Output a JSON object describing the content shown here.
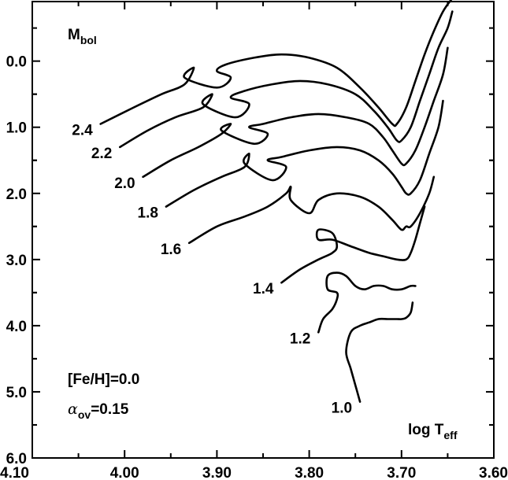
{
  "chart_data": {
    "type": "line",
    "title": "",
    "xlabel": {
      "main": "log T",
      "sub": "eff"
    },
    "ylabel": {
      "main": "M",
      "sub": "bol"
    },
    "xlim": [
      4.1,
      3.6
    ],
    "ylim": [
      6.0,
      -0.9
    ],
    "x_inverted": true,
    "y_inverted": true,
    "x_ticks": [
      "4.10",
      "4.00",
      "3.90",
      "3.80",
      "3.70",
      "3.60"
    ],
    "y_ticks": [
      "0.0",
      "1.0",
      "2.0",
      "3.0",
      "4.0",
      "5.0",
      "6.0"
    ],
    "grid": false,
    "annotations": {
      "metallicity": "[Fe/H]=0.0",
      "overshoot": {
        "symbol": "α",
        "sub": "ov",
        "value": "=0.15"
      }
    },
    "series": [
      {
        "label": "2.4",
        "x": [
          4.026,
          3.99,
          3.96,
          3.935,
          3.925,
          3.935,
          3.9,
          3.885,
          3.9,
          3.89,
          3.86,
          3.83,
          3.8,
          3.77,
          3.745,
          3.725,
          3.71,
          3.705,
          3.695,
          3.685,
          3.675,
          3.665,
          3.655,
          3.645,
          3.635
        ],
        "y": [
          0.95,
          0.7,
          0.5,
          0.35,
          0.1,
          0.25,
          0.4,
          0.25,
          0.15,
          0.05,
          -0.05,
          -0.1,
          -0.05,
          0.1,
          0.4,
          0.7,
          0.95,
          0.95,
          0.7,
          0.3,
          -0.1,
          -0.45,
          -0.75,
          -0.95,
          -1.1
        ]
      },
      {
        "label": "2.2",
        "x": [
          4.005,
          3.975,
          3.945,
          3.915,
          3.905,
          3.915,
          3.88,
          3.865,
          3.885,
          3.87,
          3.84,
          3.81,
          3.78,
          3.75,
          3.73,
          3.715,
          3.705,
          3.7,
          3.69,
          3.68,
          3.67,
          3.66,
          3.65,
          3.645
        ],
        "y": [
          1.3,
          1.05,
          0.85,
          0.7,
          0.5,
          0.65,
          0.85,
          0.65,
          0.55,
          0.45,
          0.35,
          0.3,
          0.35,
          0.5,
          0.75,
          1.0,
          1.2,
          1.2,
          1.0,
          0.6,
          0.2,
          -0.2,
          -0.5,
          -0.75
        ]
      },
      {
        "label": "2.0",
        "x": [
          3.98,
          3.95,
          3.92,
          3.895,
          3.885,
          3.895,
          3.86,
          3.845,
          3.865,
          3.85,
          3.82,
          3.79,
          3.76,
          3.735,
          3.72,
          3.71,
          3.7,
          3.695,
          3.685,
          3.675,
          3.665,
          3.655,
          3.65
        ],
        "y": [
          1.75,
          1.5,
          1.3,
          1.1,
          0.95,
          1.05,
          1.25,
          1.1,
          1.0,
          0.95,
          0.85,
          0.8,
          0.85,
          0.95,
          1.15,
          1.35,
          1.55,
          1.55,
          1.35,
          1.0,
          0.6,
          0.2,
          -0.2
        ]
      },
      {
        "label": "1.8",
        "x": [
          3.955,
          3.925,
          3.895,
          3.87,
          3.865,
          3.87,
          3.84,
          3.825,
          3.845,
          3.83,
          3.8,
          3.77,
          3.745,
          3.725,
          3.71,
          3.7,
          3.695,
          3.69,
          3.68,
          3.67,
          3.66,
          3.655
        ],
        "y": [
          2.2,
          1.95,
          1.75,
          1.6,
          1.4,
          1.55,
          1.8,
          1.6,
          1.5,
          1.45,
          1.35,
          1.3,
          1.35,
          1.5,
          1.7,
          1.9,
          2.0,
          2.0,
          1.8,
          1.4,
          1.0,
          0.6
        ]
      },
      {
        "label": "1.6",
        "x": [
          3.93,
          3.9,
          3.87,
          3.845,
          3.825,
          3.82,
          3.82,
          3.8,
          3.79,
          3.77,
          3.745,
          3.725,
          3.71,
          3.7,
          3.695,
          3.69,
          3.68,
          3.67,
          3.665
        ],
        "y": [
          2.75,
          2.5,
          2.35,
          2.2,
          2.0,
          1.9,
          2.1,
          2.3,
          2.1,
          2.0,
          2.05,
          2.2,
          2.4,
          2.55,
          2.5,
          2.5,
          2.3,
          2.0,
          1.75
        ]
      },
      {
        "label": "1.4",
        "x": [
          3.83,
          3.81,
          3.79,
          3.775,
          3.77,
          3.775,
          3.79,
          3.79,
          3.775,
          3.755,
          3.735,
          3.72,
          3.705,
          3.695,
          3.69,
          3.685,
          3.68,
          3.675
        ],
        "y": [
          3.35,
          3.15,
          3.0,
          2.9,
          2.8,
          2.6,
          2.55,
          2.7,
          2.7,
          2.8,
          2.9,
          2.95,
          3.0,
          3.0,
          2.9,
          2.7,
          2.45,
          2.2
        ]
      },
      {
        "label": "1.2",
        "x": [
          3.79,
          3.785,
          3.775,
          3.77,
          3.77,
          3.78,
          3.78,
          3.77,
          3.76,
          3.75,
          3.74,
          3.73,
          3.72,
          3.71,
          3.7,
          3.69,
          3.685
        ],
        "y": [
          4.1,
          3.9,
          3.75,
          3.6,
          3.5,
          3.45,
          3.25,
          3.2,
          3.25,
          3.4,
          3.45,
          3.4,
          3.4,
          3.45,
          3.45,
          3.4,
          3.4
        ]
      },
      {
        "label": "1.0",
        "x": [
          3.745,
          3.75,
          3.755,
          3.76,
          3.755,
          3.745,
          3.735,
          3.725,
          3.715,
          3.705,
          3.7,
          3.695,
          3.69,
          3.688
        ],
        "y": [
          5.15,
          4.9,
          4.65,
          4.4,
          4.1,
          4.0,
          3.95,
          3.9,
          3.9,
          3.9,
          3.9,
          3.88,
          3.8,
          3.65
        ]
      }
    ]
  }
}
